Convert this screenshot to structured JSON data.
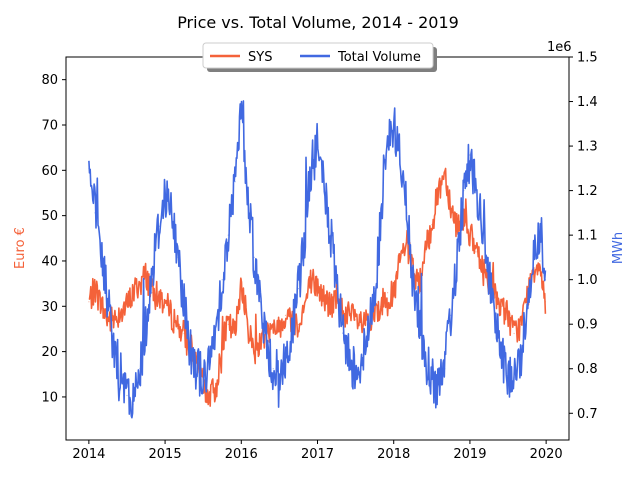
{
  "chart_data": {
    "type": "line",
    "title": "Price vs. Total Volume, 2014 - 2019",
    "xlabel": "",
    "x_ticks": [
      "2014",
      "2015",
      "2016",
      "2017",
      "2018",
      "2019",
      "2020"
    ],
    "xlim": [
      2013.7,
      2020.3
    ],
    "left_axis": {
      "label": "Euro €",
      "color": "#f4623a",
      "ylim": [
        0.5,
        85
      ],
      "ticks": [
        "10",
        "20",
        "30",
        "40",
        "50",
        "60",
        "70",
        "80"
      ]
    },
    "right_axis": {
      "label": "MWh",
      "color": "#4169e1",
      "offset_text": "1e6",
      "ylim": [
        0.64,
        1.5
      ],
      "ticks": [
        "0.7",
        "0.8",
        "0.9",
        "1.0",
        "1.1",
        "1.2",
        "1.3",
        "1.4",
        "1.5"
      ]
    },
    "legend": {
      "position": "top-center",
      "entries": [
        "SYS",
        "Total Volume"
      ]
    },
    "series": [
      {
        "name": "SYS",
        "axis": "left",
        "color": "#f4623a",
        "x": [
          2014.0,
          2014.08,
          2014.17,
          2014.25,
          2014.33,
          2014.42,
          2014.5,
          2014.58,
          2014.67,
          2014.75,
          2014.83,
          2014.92,
          2015.0,
          2015.08,
          2015.17,
          2015.25,
          2015.33,
          2015.42,
          2015.5,
          2015.58,
          2015.67,
          2015.75,
          2015.83,
          2015.92,
          2016.0,
          2016.08,
          2016.17,
          2016.25,
          2016.33,
          2016.42,
          2016.5,
          2016.58,
          2016.67,
          2016.75,
          2016.83,
          2016.92,
          2017.0,
          2017.08,
          2017.17,
          2017.25,
          2017.33,
          2017.42,
          2017.5,
          2017.58,
          2017.67,
          2017.75,
          2017.83,
          2017.92,
          2018.0,
          2018.08,
          2018.17,
          2018.25,
          2018.33,
          2018.42,
          2018.5,
          2018.58,
          2018.67,
          2018.75,
          2018.83,
          2018.92,
          2019.0,
          2019.08,
          2019.17,
          2019.25,
          2019.33,
          2019.42,
          2019.5,
          2019.58,
          2019.67,
          2019.75,
          2019.83,
          2019.92,
          2019.99
        ],
        "y": [
          31,
          34,
          30,
          27,
          27,
          29,
          30,
          33,
          35,
          37,
          33,
          32,
          31,
          28,
          26,
          24,
          20,
          16,
          13,
          10,
          12,
          22,
          26,
          24,
          36,
          26,
          20,
          22,
          25,
          24,
          26,
          28,
          27,
          26,
          30,
          36,
          34,
          32,
          30,
          31,
          29,
          28,
          27,
          26,
          26,
          28,
          30,
          33,
          32,
          40,
          44,
          38,
          34,
          42,
          48,
          55,
          60,
          52,
          48,
          50,
          46,
          42,
          38,
          36,
          32,
          30,
          28,
          24,
          26,
          32,
          38,
          40,
          31
        ]
      },
      {
        "name": "Total Volume",
        "axis": "right",
        "color": "#4169e1",
        "x": [
          2014.0,
          2014.08,
          2014.17,
          2014.25,
          2014.33,
          2014.42,
          2014.5,
          2014.58,
          2014.67,
          2014.75,
          2014.83,
          2014.92,
          2015.0,
          2015.08,
          2015.17,
          2015.25,
          2015.33,
          2015.42,
          2015.5,
          2015.58,
          2015.67,
          2015.75,
          2015.83,
          2015.92,
          2016.0,
          2016.08,
          2016.17,
          2016.25,
          2016.33,
          2016.42,
          2016.5,
          2016.58,
          2016.67,
          2016.75,
          2016.83,
          2016.92,
          2017.0,
          2017.08,
          2017.17,
          2017.25,
          2017.33,
          2017.42,
          2017.5,
          2017.58,
          2017.67,
          2017.75,
          2017.83,
          2017.92,
          2018.0,
          2018.08,
          2018.17,
          2018.25,
          2018.33,
          2018.42,
          2018.5,
          2018.58,
          2018.67,
          2018.75,
          2018.83,
          2018.92,
          2019.0,
          2019.08,
          2019.17,
          2019.25,
          2019.33,
          2019.42,
          2019.5,
          2019.58,
          2019.67,
          2019.75,
          2019.83,
          2019.92,
          2019.99
        ],
        "y": [
          1.25,
          1.15,
          1.05,
          0.95,
          0.85,
          0.78,
          0.74,
          0.72,
          0.8,
          0.9,
          1.02,
          1.12,
          1.2,
          1.15,
          1.05,
          0.95,
          0.85,
          0.8,
          0.78,
          0.8,
          0.9,
          1.0,
          1.1,
          1.22,
          1.38,
          1.2,
          1.05,
          0.95,
          0.85,
          0.8,
          0.78,
          0.82,
          0.88,
          0.98,
          1.1,
          1.25,
          1.3,
          1.22,
          1.1,
          0.98,
          0.88,
          0.82,
          0.8,
          0.82,
          0.88,
          0.98,
          1.12,
          1.3,
          1.35,
          1.28,
          1.15,
          1.0,
          0.9,
          0.82,
          0.78,
          0.76,
          0.8,
          0.92,
          1.05,
          1.2,
          1.28,
          1.2,
          1.1,
          1.0,
          0.9,
          0.82,
          0.78,
          0.78,
          0.82,
          0.95,
          1.05,
          1.12,
          1.0
        ]
      }
    ]
  }
}
